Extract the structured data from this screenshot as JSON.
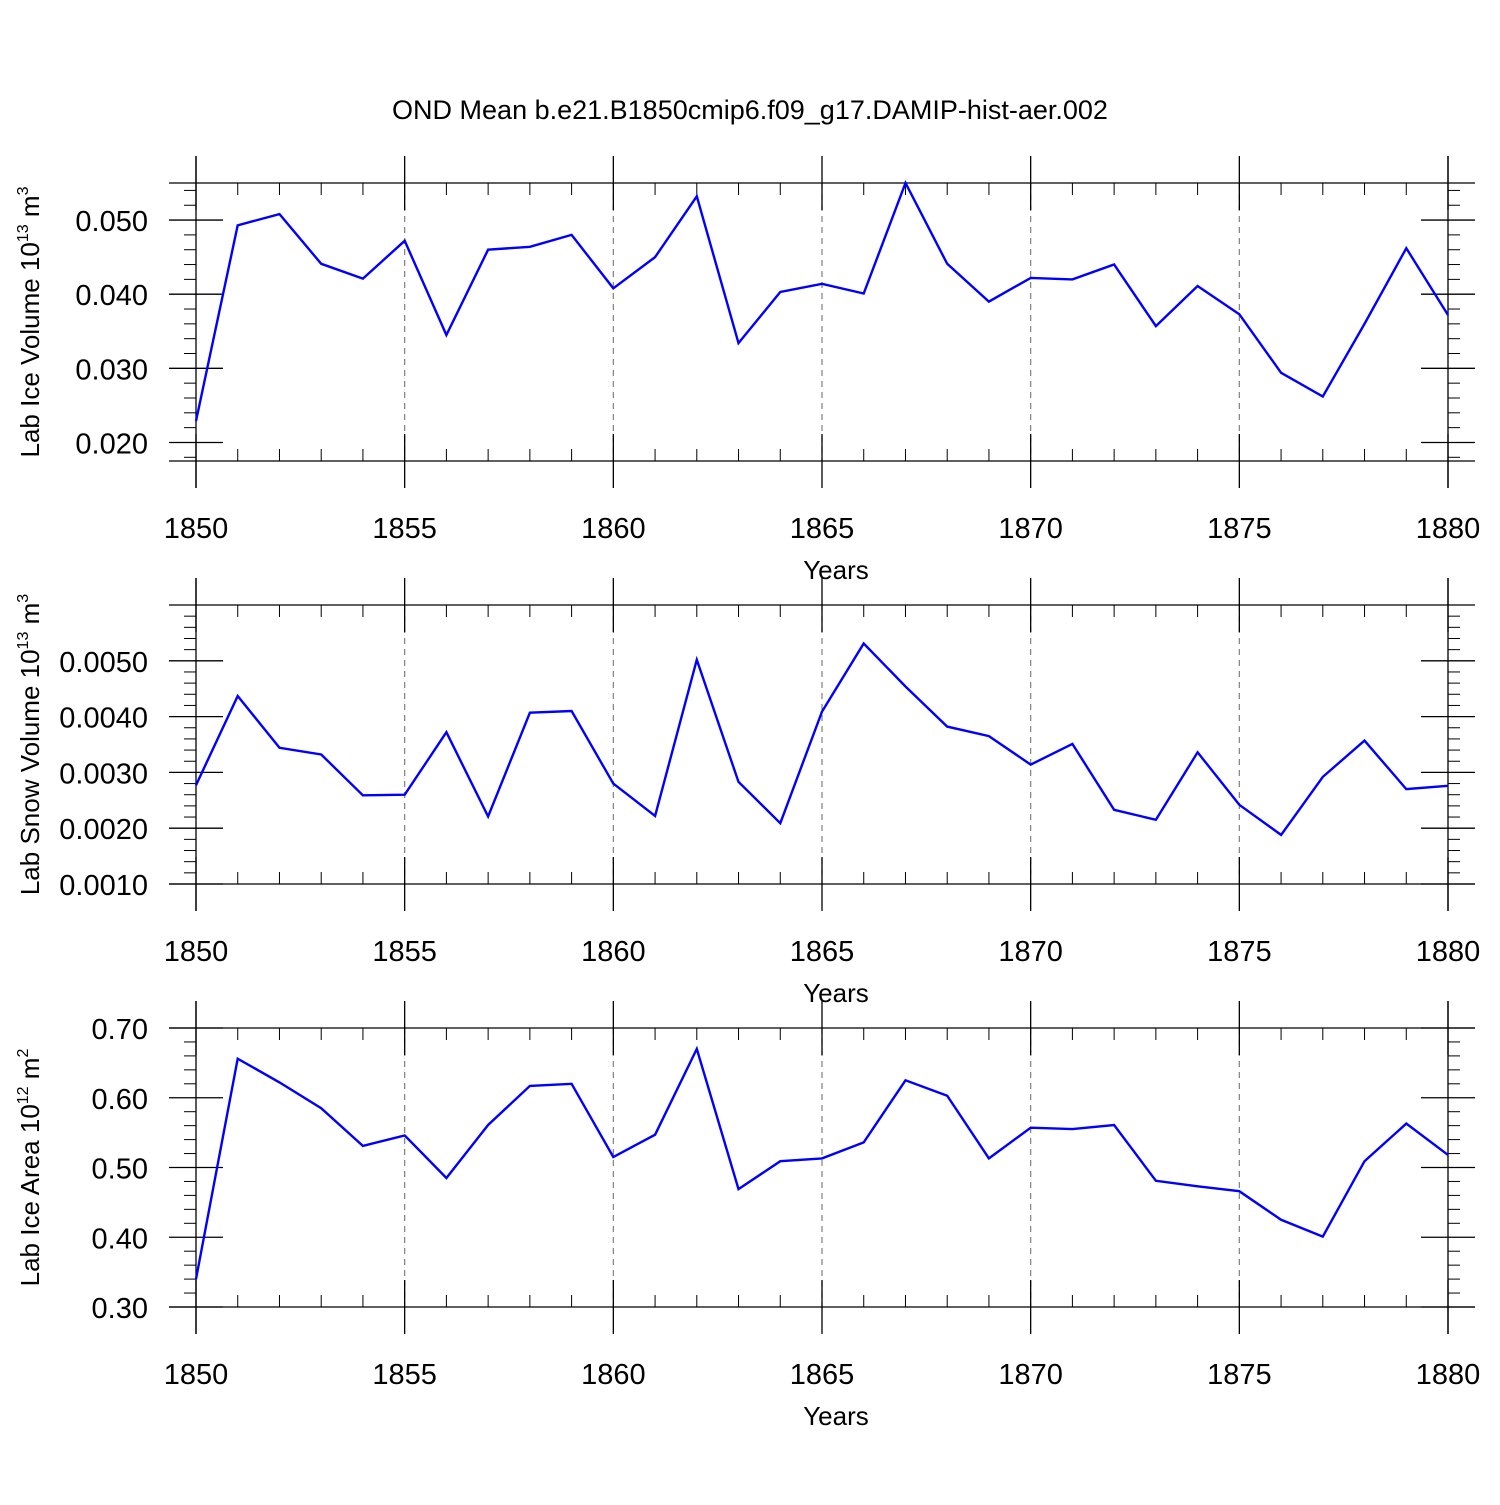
{
  "title": "OND Mean b.e21.B1850cmip6.f09_g17.DAMIP-hist-aer.002",
  "colors": {
    "line": "#0000ff",
    "axis": "#000000",
    "grid": "#808080"
  },
  "chart_data": [
    {
      "type": "line",
      "name": "lab-ice-volume",
      "ylabel": {
        "text": "Lab Ice Volume 10",
        "exponent": "13",
        "unit": " m",
        "unit_exponent": "3"
      },
      "xlabel": "Years",
      "xlim": [
        1850,
        1880
      ],
      "ylim": [
        0.0175,
        0.055
      ],
      "x_ticks": [
        "1850",
        "1855",
        "1860",
        "1865",
        "1870",
        "1875",
        "1880"
      ],
      "y_ticks": [
        0.02,
        0.03,
        0.04,
        0.05
      ],
      "y_tick_labels": [
        "0.020",
        "0.030",
        "0.040",
        "0.050"
      ],
      "y_minor_step": 0.002,
      "grid": "dashed vertical at major x ticks",
      "x": [
        1850,
        1851,
        1852,
        1853,
        1854,
        1855,
        1856,
        1857,
        1858,
        1859,
        1860,
        1861,
        1862,
        1863,
        1864,
        1865,
        1866,
        1867,
        1868,
        1869,
        1870,
        1871,
        1872,
        1873,
        1874,
        1875,
        1876,
        1877,
        1878,
        1879,
        1880
      ],
      "values": [
        0.0229,
        0.0493,
        0.0508,
        0.0441,
        0.0421,
        0.0472,
        0.0345,
        0.046,
        0.0464,
        0.048,
        0.0408,
        0.045,
        0.0532,
        0.0334,
        0.0403,
        0.0414,
        0.0401,
        0.055,
        0.0441,
        0.039,
        0.0422,
        0.042,
        0.044,
        0.0357,
        0.0411,
        0.0373,
        0.0294,
        0.0262,
        0.036,
        0.0462,
        0.0372
      ]
    },
    {
      "type": "line",
      "name": "lab-snow-volume",
      "ylabel": {
        "text": "Lab Snow Volume 10",
        "exponent": "13",
        "unit": " m",
        "unit_exponent": "3"
      },
      "xlabel": "Years",
      "xlim": [
        1850,
        1880
      ],
      "ylim": [
        0.001,
        0.006
      ],
      "x_ticks": [
        "1850",
        "1855",
        "1860",
        "1865",
        "1870",
        "1875",
        "1880"
      ],
      "y_ticks": [
        0.001,
        0.002,
        0.003,
        0.004,
        0.005
      ],
      "y_tick_labels": [
        "0.0010",
        "0.0020",
        "0.0030",
        "0.0040",
        "0.0050"
      ],
      "y_minor_step": 0.0002,
      "grid": "dashed vertical at major x ticks",
      "x": [
        1850,
        1851,
        1852,
        1853,
        1854,
        1855,
        1856,
        1857,
        1858,
        1859,
        1860,
        1861,
        1862,
        1863,
        1864,
        1865,
        1866,
        1867,
        1868,
        1869,
        1870,
        1871,
        1872,
        1873,
        1874,
        1875,
        1876,
        1877,
        1878,
        1879,
        1880
      ],
      "values": [
        0.00277,
        0.00437,
        0.00344,
        0.00332,
        0.00259,
        0.0026,
        0.00372,
        0.00221,
        0.00407,
        0.0041,
        0.0028,
        0.00222,
        0.00502,
        0.00283,
        0.00209,
        0.00409,
        0.00531,
        0.00454,
        0.00382,
        0.00365,
        0.00314,
        0.00351,
        0.00233,
        0.00215,
        0.00336,
        0.00242,
        0.00188,
        0.00292,
        0.00357,
        0.0027,
        0.00276
      ]
    },
    {
      "type": "line",
      "name": "lab-ice-area",
      "ylabel": {
        "text": "Lab Ice Area 10",
        "exponent": "12",
        "unit": " m",
        "unit_exponent": "2"
      },
      "xlabel": "Years",
      "xlim": [
        1850,
        1880
      ],
      "ylim": [
        0.3,
        0.7
      ],
      "x_ticks": [
        "1850",
        "1855",
        "1860",
        "1865",
        "1870",
        "1875",
        "1880"
      ],
      "y_ticks": [
        0.3,
        0.4,
        0.5,
        0.6,
        0.7
      ],
      "y_tick_labels": [
        "0.30",
        "0.40",
        "0.50",
        "0.60",
        "0.70"
      ],
      "y_minor_step": 0.02,
      "grid": "dashed vertical at major x ticks",
      "x": [
        1850,
        1851,
        1852,
        1853,
        1854,
        1855,
        1856,
        1857,
        1858,
        1859,
        1860,
        1861,
        1862,
        1863,
        1864,
        1865,
        1866,
        1867,
        1868,
        1869,
        1870,
        1871,
        1872,
        1873,
        1874,
        1875,
        1876,
        1877,
        1878,
        1879,
        1880
      ],
      "values": [
        0.34,
        0.656,
        0.622,
        0.585,
        0.531,
        0.546,
        0.485,
        0.561,
        0.617,
        0.62,
        0.515,
        0.547,
        0.67,
        0.469,
        0.509,
        0.513,
        0.536,
        0.625,
        0.603,
        0.513,
        0.557,
        0.555,
        0.561,
        0.481,
        0.473,
        0.466,
        0.425,
        0.401,
        0.509,
        0.563,
        0.518
      ]
    }
  ]
}
